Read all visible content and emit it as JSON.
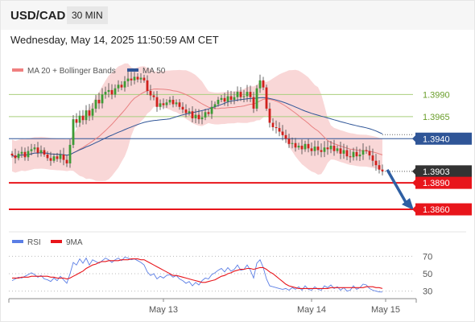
{
  "header": {
    "symbol": "USD/CAD",
    "timeframe": "30 MIN",
    "timestamp": "Wednesday, May 14, 2025 11:50:59 AM CET"
  },
  "chart_data": [
    {
      "type": "candlestick",
      "legend": [
        {
          "label": "MA 20 + Bollinger Bands",
          "color": "#f08080"
        },
        {
          "label": "MA 50",
          "color": "#2f5597"
        }
      ],
      "x_ticks": [
        "May 13",
        "May 14",
        "May 15"
      ],
      "ylim": [
        1.384,
        1.4035
      ],
      "levels": [
        {
          "value": 1.399,
          "label": "1.3990",
          "color": "#a9cf7c",
          "style": "resistance"
        },
        {
          "value": 1.3965,
          "label": "1.3965",
          "color": "#a9cf7c",
          "style": "resistance"
        },
        {
          "value": 1.394,
          "label": "1.3940",
          "color": "#2f5597",
          "style": "pivot"
        },
        {
          "value": 1.3903,
          "label": "1.3903",
          "color": "#333333",
          "style": "current"
        },
        {
          "value": 1.389,
          "label": "1.3890",
          "color": "#e8151b",
          "style": "support"
        },
        {
          "value": 1.386,
          "label": "1.3860",
          "color": "#e8151b",
          "style": "support"
        }
      ],
      "closes": [
        1.3921,
        1.3918,
        1.3923,
        1.3925,
        1.3919,
        1.3926,
        1.3928,
        1.393,
        1.3924,
        1.3927,
        1.3922,
        1.3918,
        1.3915,
        1.392,
        1.3917,
        1.3922,
        1.3916,
        1.3912,
        1.3933,
        1.3962,
        1.3958,
        1.3966,
        1.3961,
        1.3972,
        1.3966,
        1.3974,
        1.3984,
        1.398,
        1.399,
        1.3993,
        1.3995,
        1.399,
        1.3997,
        1.4001,
        1.3998,
        1.4005,
        1.4008,
        1.4006,
        1.401,
        1.4007,
        1.4009,
        1.4006,
        1.3994,
        1.3989,
        1.3987,
        1.3976,
        1.398,
        1.3978,
        1.3981,
        1.3984,
        1.3979,
        1.3981,
        1.3976,
        1.3973,
        1.3969,
        1.3971,
        1.3963,
        1.3967,
        1.3962,
        1.3964,
        1.397,
        1.3968,
        1.3976,
        1.3979,
        1.3984,
        1.3986,
        1.3982,
        1.3988,
        1.3984,
        1.3987,
        1.3993,
        1.3987,
        1.3988,
        1.3993,
        1.3987,
        1.3974,
        1.3997,
        1.4006,
        1.3998,
        1.3974,
        1.3958,
        1.3953,
        1.3952,
        1.3948,
        1.3944,
        1.394,
        1.3934,
        1.3935,
        1.393,
        1.3932,
        1.3928,
        1.3934,
        1.3929,
        1.3926,
        1.3931,
        1.3927,
        1.3925,
        1.393,
        1.3928,
        1.3932,
        1.3926,
        1.3929,
        1.3923,
        1.3927,
        1.392,
        1.3919,
        1.3925,
        1.392,
        1.3922,
        1.3927,
        1.3926,
        1.3921,
        1.3915,
        1.391,
        1.3905,
        1.3903
      ],
      "projection": {
        "from": 1.3903,
        "to": 1.386
      }
    },
    {
      "type": "line",
      "legend": [
        {
          "label": "RSI",
          "color": "#5b7ee5"
        },
        {
          "label": "9MA",
          "color": "#e8151b"
        }
      ],
      "ylim": [
        25,
        75
      ],
      "levels": [
        70,
        50,
        30
      ],
      "series": [
        {
          "name": "RSI",
          "values": [
            42,
            44,
            46,
            45,
            47,
            49,
            51,
            49,
            46,
            48,
            44,
            43,
            41,
            45,
            42,
            47,
            43,
            39,
            50,
            63,
            60,
            67,
            62,
            68,
            60,
            66,
            64,
            62,
            65,
            68,
            66,
            63,
            66,
            68,
            65,
            69,
            68,
            66,
            67,
            65,
            63,
            60,
            52,
            48,
            50,
            44,
            47,
            45,
            48,
            49,
            46,
            48,
            44,
            42,
            39,
            41,
            36,
            40,
            37,
            42,
            45,
            44,
            49,
            51,
            54,
            56,
            52,
            57,
            53,
            55,
            60,
            54,
            55,
            60,
            54,
            45,
            62,
            66,
            57,
            44,
            36,
            35,
            34,
            33,
            32,
            33,
            31,
            34,
            32,
            35,
            31,
            36,
            32,
            31,
            35,
            32,
            31,
            36,
            34,
            37,
            33,
            35,
            31,
            34,
            30,
            31,
            36,
            32,
            34,
            38,
            37,
            33,
            31,
            30,
            29,
            29
          ]
        },
        {
          "name": "9MA",
          "values": [
            45,
            45,
            45,
            46,
            46,
            46,
            47,
            47,
            47,
            47,
            47,
            47,
            46,
            46,
            45,
            45,
            45,
            44,
            45,
            47,
            49,
            51,
            53,
            56,
            58,
            60,
            61,
            63,
            64,
            64,
            65,
            65,
            65,
            65,
            66,
            66,
            66,
            67,
            67,
            67,
            66,
            66,
            64,
            62,
            60,
            58,
            56,
            54,
            52,
            50,
            48,
            48,
            47,
            46,
            45,
            44,
            43,
            42,
            41,
            40,
            40,
            41,
            42,
            43,
            45,
            47,
            48,
            50,
            51,
            53,
            54,
            55,
            55,
            56,
            56,
            55,
            56,
            57,
            57,
            55,
            52,
            50,
            47,
            44,
            41,
            38,
            36,
            35,
            34,
            33,
            33,
            33,
            33,
            33,
            33,
            33,
            33,
            33,
            33,
            34,
            34,
            34,
            34,
            34,
            34,
            34,
            34,
            34,
            34,
            34,
            35,
            35,
            35,
            34,
            34,
            33
          ]
        }
      ]
    }
  ]
}
